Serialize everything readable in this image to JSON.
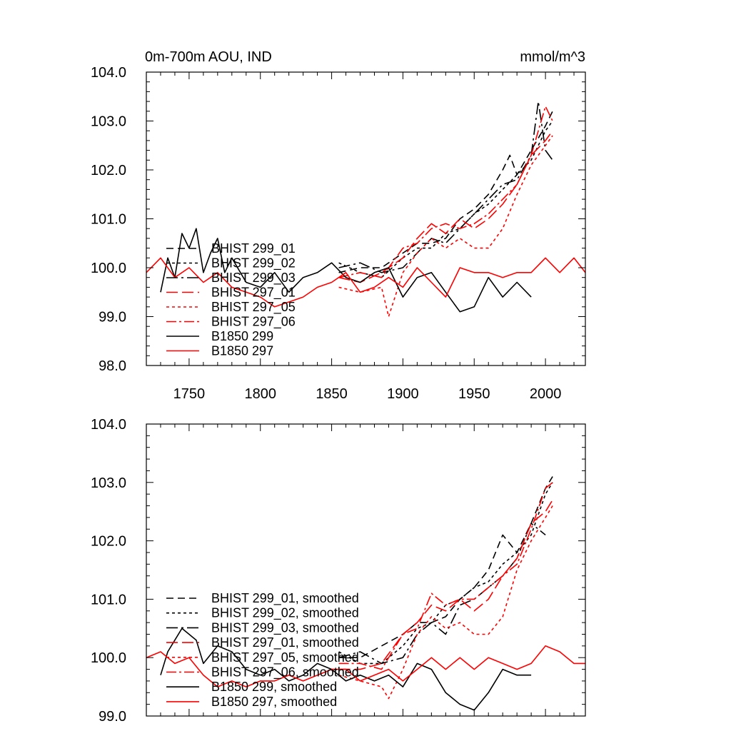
{
  "figure": {
    "title_left": "0m-700m AOU, IND",
    "title_right": "mmol/m^3"
  },
  "colors": {
    "black": "#000000",
    "red": "#ff0000"
  },
  "chart_data": [
    {
      "type": "line",
      "name": "annual",
      "xlim": [
        1720,
        2028
      ],
      "ylim": [
        98.0,
        104.0
      ],
      "xticks": [
        1750,
        1800,
        1850,
        1900,
        1950,
        2000
      ],
      "xtick_labels": [
        "1750",
        "1800",
        "1850",
        "1900",
        "1950",
        "2000"
      ],
      "yticks": [
        98,
        99,
        100,
        101,
        102,
        103,
        104
      ],
      "ytick_labels": [
        "98.0",
        "99.0",
        "100.0",
        "101.0",
        "102.0",
        "103.0",
        "104.0"
      ],
      "legend_position": "left",
      "series": [
        {
          "name": "BHIST 299_01",
          "color": "#000000",
          "dash": "10,6",
          "x": [
            1855,
            1870,
            1885,
            1900,
            1910,
            1920,
            1930,
            1940,
            1950,
            1960,
            1970,
            1975,
            1980,
            1990,
            2000,
            2005
          ],
          "values": [
            99.9,
            100.0,
            100.0,
            100.3,
            100.5,
            100.5,
            100.6,
            101.0,
            101.2,
            101.5,
            102.0,
            102.3,
            101.9,
            102.4,
            102.9,
            103.2
          ]
        },
        {
          "name": "BHIST 299_02",
          "color": "#000000",
          "dash": "4,4",
          "x": [
            1855,
            1870,
            1885,
            1900,
            1910,
            1920,
            1930,
            1940,
            1950,
            1960,
            1970,
            1980,
            1990,
            2000,
            2005
          ],
          "values": [
            100.1,
            99.9,
            99.8,
            100.2,
            100.4,
            100.4,
            100.7,
            100.8,
            101.1,
            101.3,
            101.6,
            101.9,
            102.2,
            102.8,
            103.0
          ]
        },
        {
          "name": "BHIST 299_03",
          "color": "#000000",
          "dash": "16,5,3,5",
          "x": [
            1855,
            1870,
            1885,
            1900,
            1910,
            1920,
            1930,
            1940,
            1950,
            1960,
            1970,
            1980,
            1990,
            1995,
            2000,
            2005
          ],
          "values": [
            100.0,
            100.1,
            99.9,
            100.0,
            100.3,
            100.6,
            100.5,
            100.8,
            101.1,
            101.4,
            101.7,
            101.8,
            102.3,
            103.4,
            102.4,
            102.2
          ]
        },
        {
          "name": "BHIST 297_01",
          "color": "#ff0000",
          "dash": "16,6",
          "x": [
            1855,
            1870,
            1885,
            1900,
            1910,
            1920,
            1930,
            1940,
            1950,
            1960,
            1970,
            1980,
            1990,
            2000,
            2005
          ],
          "values": [
            99.8,
            99.7,
            99.9,
            100.2,
            100.6,
            100.9,
            100.7,
            101.0,
            100.8,
            101.0,
            101.3,
            101.7,
            102.3,
            102.6,
            102.8
          ]
        },
        {
          "name": "BHIST 297_05",
          "color": "#ff0000",
          "dash": "4,4",
          "x": [
            1855,
            1870,
            1885,
            1890,
            1900,
            1910,
            1920,
            1930,
            1940,
            1950,
            1960,
            1970,
            1980,
            1990,
            2000,
            2005
          ],
          "values": [
            99.6,
            99.5,
            99.6,
            99.0,
            99.9,
            100.3,
            100.6,
            100.4,
            100.6,
            100.4,
            100.4,
            100.8,
            101.5,
            102.1,
            102.5,
            102.7
          ]
        },
        {
          "name": "BHIST 297_06",
          "color": "#ff0000",
          "dash": "14,4,3,4",
          "x": [
            1855,
            1870,
            1885,
            1900,
            1910,
            1920,
            1930,
            1940,
            1950,
            1960,
            1970,
            1980,
            1990,
            2000,
            2005
          ],
          "values": [
            99.8,
            99.9,
            99.8,
            100.4,
            100.5,
            100.8,
            100.9,
            100.8,
            100.9,
            101.1,
            101.4,
            101.7,
            102.3,
            103.3,
            103.0
          ]
        },
        {
          "name": "B1850 299",
          "color": "#000000",
          "dash": "",
          "x": [
            1730,
            1735,
            1740,
            1745,
            1750,
            1755,
            1760,
            1765,
            1770,
            1775,
            1780,
            1790,
            1800,
            1810,
            1820,
            1830,
            1840,
            1850,
            1860,
            1870,
            1880,
            1890,
            1900,
            1910,
            1920,
            1930,
            1940,
            1950,
            1960,
            1970,
            1980,
            1990
          ],
          "values": [
            99.5,
            100.2,
            99.8,
            100.7,
            100.4,
            100.8,
            99.9,
            100.3,
            100.6,
            99.9,
            100.2,
            99.7,
            99.6,
            99.9,
            99.5,
            99.8,
            99.9,
            100.1,
            99.8,
            99.7,
            99.9,
            100.0,
            99.4,
            99.8,
            99.9,
            99.5,
            99.1,
            99.2,
            99.8,
            99.4,
            99.7,
            99.4
          ]
        },
        {
          "name": "B1850 297",
          "color": "#ff0000",
          "dash": "",
          "x": [
            1720,
            1730,
            1740,
            1750,
            1760,
            1770,
            1780,
            1790,
            1800,
            1810,
            1820,
            1830,
            1840,
            1850,
            1860,
            1870,
            1880,
            1890,
            1900,
            1910,
            1920,
            1930,
            1940,
            1950,
            1960,
            1970,
            1980,
            1990,
            2000,
            2010,
            2020,
            2028
          ],
          "values": [
            99.9,
            100.2,
            99.8,
            100.0,
            99.7,
            99.9,
            99.6,
            99.5,
            99.4,
            99.2,
            99.3,
            99.4,
            99.6,
            99.7,
            99.9,
            99.5,
            99.6,
            99.8,
            99.6,
            100.0,
            99.7,
            99.4,
            100.0,
            99.9,
            99.9,
            99.8,
            99.9,
            99.9,
            100.2,
            99.9,
            100.2,
            99.9
          ]
        }
      ]
    },
    {
      "type": "line",
      "name": "smoothed",
      "xlim": [
        1720,
        2028
      ],
      "ylim": [
        99.0,
        104.0
      ],
      "xticks": [
        1750,
        1800,
        1850,
        1900,
        1950,
        2000
      ],
      "yticks": [
        99,
        100,
        101,
        102,
        103,
        104
      ],
      "ytick_labels": [
        "99.0",
        "100.0",
        "101.0",
        "102.0",
        "103.0",
        "104.0"
      ],
      "legend_position": "bottom-left",
      "series": [
        {
          "name": "BHIST 299_01, smoothed",
          "color": "#000000",
          "dash": "10,6",
          "x": [
            1855,
            1870,
            1885,
            1900,
            1910,
            1920,
            1930,
            1940,
            1950,
            1960,
            1970,
            1980,
            1990,
            2000,
            2005
          ],
          "values": [
            100.0,
            100.0,
            100.2,
            100.4,
            100.6,
            100.6,
            100.7,
            101.0,
            101.2,
            101.5,
            102.1,
            101.8,
            102.3,
            102.9,
            103.1
          ]
        },
        {
          "name": "BHIST 299_02, smoothed",
          "color": "#000000",
          "dash": "4,4",
          "x": [
            1855,
            1870,
            1885,
            1900,
            1910,
            1920,
            1930,
            1940,
            1950,
            1960,
            1970,
            1980,
            1990,
            2000,
            2005
          ],
          "values": [
            100.1,
            99.9,
            99.9,
            100.2,
            100.5,
            100.6,
            100.9,
            101.0,
            101.2,
            101.3,
            101.6,
            101.8,
            102.1,
            102.8,
            103.0
          ]
        },
        {
          "name": "BHIST 299_03, smoothed",
          "color": "#000000",
          "dash": "16,5,3,5",
          "x": [
            1855,
            1870,
            1885,
            1900,
            1910,
            1920,
            1930,
            1940,
            1950,
            1960,
            1970,
            1980,
            1990,
            2000
          ],
          "values": [
            100.0,
            100.1,
            99.9,
            100.0,
            100.4,
            100.6,
            100.4,
            100.9,
            101.0,
            101.2,
            101.4,
            101.7,
            102.3,
            102.1
          ]
        },
        {
          "name": "BHIST 297_01, smoothed",
          "color": "#ff0000",
          "dash": "16,6",
          "x": [
            1855,
            1870,
            1885,
            1900,
            1910,
            1920,
            1930,
            1940,
            1950,
            1960,
            1970,
            1980,
            1990,
            2000,
            2005
          ],
          "values": [
            99.8,
            99.8,
            99.9,
            100.4,
            100.6,
            100.9,
            100.8,
            101.0,
            100.8,
            101.0,
            101.4,
            101.7,
            102.3,
            102.5,
            102.7
          ]
        },
        {
          "name": "BHIST 297_05, smoothed",
          "color": "#ff0000",
          "dash": "4,4",
          "x": [
            1855,
            1870,
            1885,
            1890,
            1900,
            1910,
            1920,
            1930,
            1940,
            1950,
            1960,
            1970,
            1980,
            1990,
            2000,
            2005
          ],
          "values": [
            99.7,
            99.6,
            99.5,
            99.3,
            99.8,
            100.4,
            100.7,
            100.5,
            100.6,
            100.4,
            100.4,
            100.7,
            101.5,
            102.0,
            102.4,
            102.6
          ]
        },
        {
          "name": "BHIST 297_06, smoothed",
          "color": "#ff0000",
          "dash": "14,4,3,4",
          "x": [
            1855,
            1870,
            1885,
            1900,
            1910,
            1920,
            1930,
            1940,
            1950,
            1960,
            1970,
            1980,
            1990,
            2000,
            2005
          ],
          "values": [
            99.9,
            99.9,
            99.8,
            100.4,
            100.5,
            101.1,
            100.9,
            101.0,
            101.0,
            101.2,
            101.4,
            101.6,
            102.2,
            102.9,
            103.0
          ]
        },
        {
          "name": "B1850 299, smoothed",
          "color": "#000000",
          "dash": "",
          "x": [
            1730,
            1735,
            1740,
            1745,
            1750,
            1755,
            1760,
            1770,
            1780,
            1790,
            1800,
            1810,
            1820,
            1830,
            1840,
            1850,
            1860,
            1870,
            1880,
            1890,
            1900,
            1910,
            1920,
            1930,
            1940,
            1950,
            1960,
            1970,
            1980,
            1990
          ],
          "values": [
            99.7,
            100.1,
            100.3,
            100.5,
            100.4,
            100.3,
            99.9,
            100.2,
            100.1,
            99.8,
            99.7,
            99.8,
            99.6,
            99.7,
            99.9,
            99.8,
            99.6,
            99.7,
            99.6,
            99.7,
            99.5,
            99.9,
            99.8,
            99.4,
            99.2,
            99.1,
            99.4,
            99.8,
            99.7,
            99.7
          ]
        },
        {
          "name": "B1850 297, smoothed",
          "color": "#ff0000",
          "dash": "",
          "x": [
            1720,
            1730,
            1740,
            1750,
            1760,
            1770,
            1780,
            1790,
            1800,
            1810,
            1820,
            1830,
            1840,
            1850,
            1860,
            1870,
            1880,
            1890,
            1900,
            1910,
            1920,
            1930,
            1940,
            1950,
            1960,
            1970,
            1980,
            1990,
            2000,
            2010,
            2020,
            2028
          ],
          "values": [
            100.0,
            100.1,
            99.9,
            100.0,
            99.7,
            99.5,
            99.6,
            99.5,
            99.6,
            99.6,
            99.7,
            99.6,
            99.7,
            99.8,
            99.8,
            99.6,
            99.7,
            99.8,
            99.6,
            99.8,
            100.0,
            99.8,
            100.0,
            99.8,
            100.0,
            99.9,
            99.8,
            99.9,
            100.2,
            100.1,
            99.9,
            99.9
          ]
        }
      ]
    }
  ]
}
